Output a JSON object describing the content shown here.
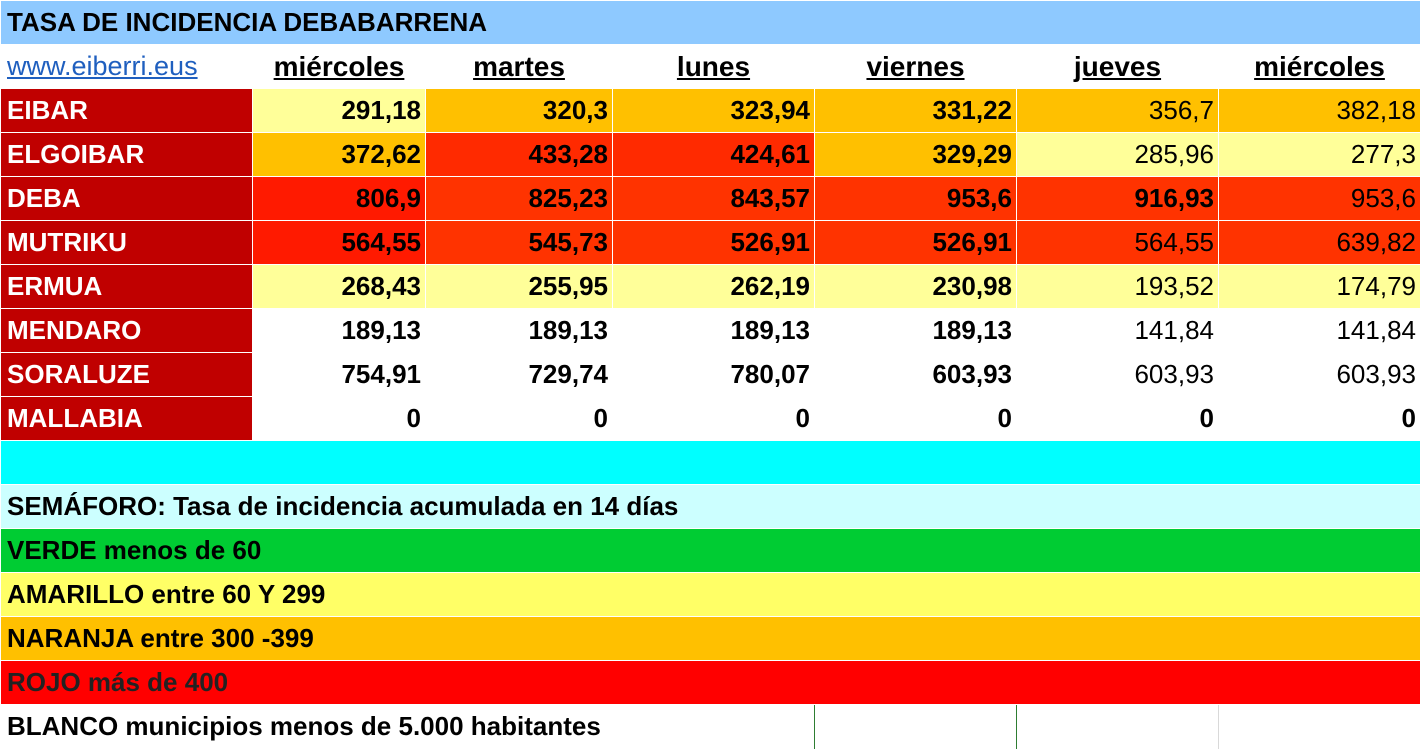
{
  "title": "TASA DE INCIDENCIA DEBABARRENA",
  "link": "www.eiberri.eus",
  "days": [
    "miércoles",
    "martes",
    "lunes",
    "viernes",
    "jueves",
    "miércoles"
  ],
  "rows": [
    {
      "town": "EIBAR",
      "values": [
        "291,18",
        "320,3",
        "323,94",
        "331,22",
        "356,7",
        "382,18"
      ]
    },
    {
      "town": "ELGOIBAR",
      "values": [
        "372,62",
        "433,28",
        "424,61",
        "329,29",
        "285,96",
        "277,3"
      ]
    },
    {
      "town": "DEBA",
      "values": [
        "806,9",
        "825,23",
        "843,57",
        "953,6",
        "916,93",
        "953,6"
      ]
    },
    {
      "town": "MUTRIKU",
      "values": [
        "564,55",
        "545,73",
        "526,91",
        "526,91",
        "564,55",
        "639,82"
      ]
    },
    {
      "town": "ERMUA",
      "values": [
        "268,43",
        "255,95",
        "262,19",
        "230,98",
        "193,52",
        "174,79"
      ]
    },
    {
      "town": "MENDARO",
      "values": [
        "189,13",
        "189,13",
        "189,13",
        "189,13",
        "141,84",
        "141,84"
      ]
    },
    {
      "town": "SORALUZE",
      "values": [
        "754,91",
        "729,74",
        "780,07",
        "603,93",
        "603,93",
        "603,93"
      ]
    },
    {
      "town": "MALLABIA",
      "values": [
        "0",
        "0",
        "0",
        "0",
        "0",
        "0"
      ]
    }
  ],
  "legend": {
    "semaforo": "SEMÁFORO:  Tasa de incidencia acumulada en 14 días",
    "verde": "VERDE menos de 60",
    "amarillo": "AMARILLO entre 60 Y 299",
    "naranja": "NARANJA entre 300 -399",
    "rojo": "ROJO más de 400",
    "blanco": "BLANCO municipios menos de 5.000 habitantes"
  },
  "colors": {
    "title_bg": "#8ec9ff",
    "town_bg": "#c00000",
    "spacer_bg": "#00ffff",
    "semaforo_bg": "#ccffff",
    "verde": "#00cc33",
    "amarillo": "#ffff66",
    "naranja": "#ffc000",
    "rojo": "#ff0000",
    "yellow_light": "#ffff99",
    "orange_dark": "#ff3300"
  }
}
